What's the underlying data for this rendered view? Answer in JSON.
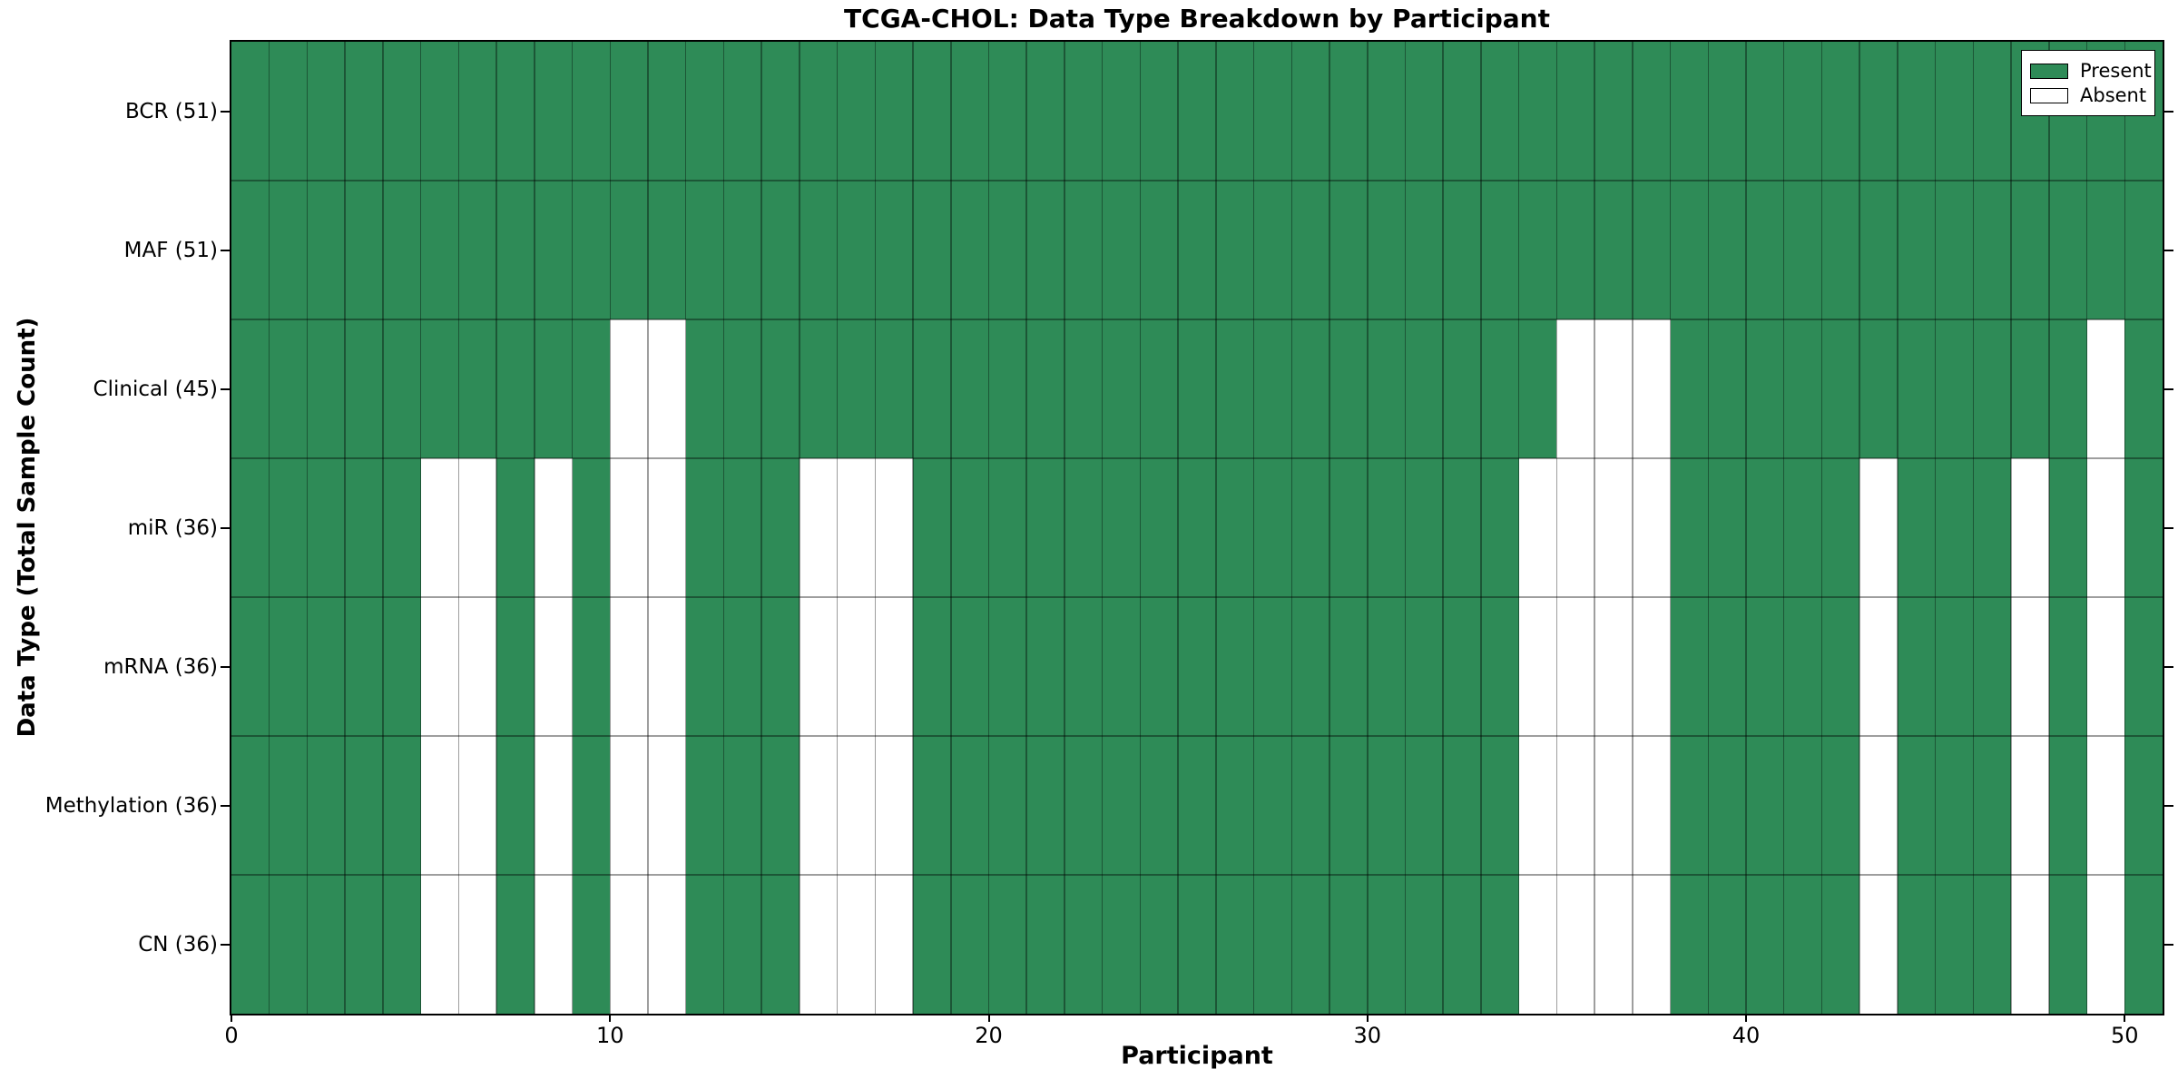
{
  "chart_data": {
    "type": "heatmap",
    "title": "TCGA-CHOL: Data Type Breakdown by Participant",
    "xlabel": "Participant",
    "ylabel": "Data Type (Total Sample Count)",
    "n_participants": 51,
    "xlim": [
      0,
      51
    ],
    "x_ticks": [
      0,
      10,
      20,
      30,
      40,
      50
    ],
    "grid": true,
    "legend": {
      "position": "upper right",
      "entries": [
        {
          "label": "Present",
          "color": "#2e8b57"
        },
        {
          "label": "Absent",
          "color": "#ffffff"
        }
      ]
    },
    "colors": {
      "present": "#2e8b57",
      "absent": "#ffffff",
      "gridline": "rgba(0,0,0,0.38)"
    },
    "rows": [
      {
        "data_type": "BCR",
        "label": "BCR (51)",
        "total_samples": 51,
        "absent_participants": []
      },
      {
        "data_type": "MAF",
        "label": "MAF (51)",
        "total_samples": 51,
        "absent_participants": []
      },
      {
        "data_type": "Clinical",
        "label": "Clinical (45)",
        "total_samples": 45,
        "absent_participants": [
          10,
          11,
          35,
          36,
          37,
          49
        ]
      },
      {
        "data_type": "miR",
        "label": "miR (36)",
        "total_samples": 36,
        "absent_participants": [
          5,
          6,
          8,
          10,
          11,
          15,
          16,
          17,
          34,
          35,
          36,
          37,
          43,
          47,
          49
        ]
      },
      {
        "data_type": "mRNA",
        "label": "mRNA (36)",
        "total_samples": 36,
        "absent_participants": [
          5,
          6,
          8,
          10,
          11,
          15,
          16,
          17,
          34,
          35,
          36,
          37,
          43,
          47,
          49
        ]
      },
      {
        "data_type": "Methylation",
        "label": "Methylation (36)",
        "total_samples": 36,
        "absent_participants": [
          5,
          6,
          8,
          10,
          11,
          15,
          16,
          17,
          34,
          35,
          36,
          37,
          43,
          47,
          49
        ]
      },
      {
        "data_type": "CN",
        "label": "CN (36)",
        "total_samples": 36,
        "absent_participants": [
          5,
          6,
          8,
          10,
          11,
          15,
          16,
          17,
          34,
          35,
          36,
          37,
          43,
          47,
          49
        ]
      }
    ]
  }
}
